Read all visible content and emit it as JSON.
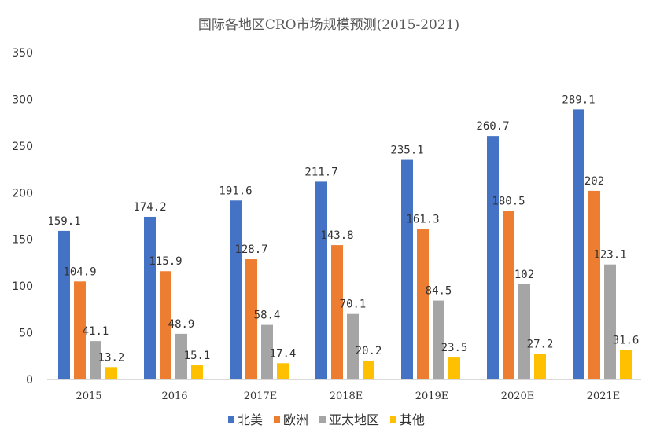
{
  "chart_data": {
    "type": "bar",
    "title": "国际各地区CRO市场规模预测(2015-2021)",
    "categories": [
      "2015",
      "2016",
      "2017E",
      "2018E",
      "2019E",
      "2020E",
      "2021E"
    ],
    "series": [
      {
        "name": "北美",
        "color": "#4472C4",
        "values": [
          159.1,
          174.2,
          191.6,
          211.7,
          235.1,
          260.7,
          289.1
        ]
      },
      {
        "name": "欧洲",
        "color": "#ED7D31",
        "values": [
          104.9,
          115.9,
          128.7,
          143.8,
          161.3,
          180.5,
          202
        ]
      },
      {
        "name": "亚太地区",
        "color": "#A5A5A5",
        "values": [
          41.1,
          48.9,
          58.4,
          70.1,
          84.5,
          102,
          123.1
        ]
      },
      {
        "name": "其他",
        "color": "#FFC000",
        "values": [
          13.2,
          15.1,
          17.4,
          20.2,
          23.5,
          27.2,
          31.6
        ]
      }
    ],
    "ylim": [
      0,
      350
    ],
    "yticks": [
      0,
      50,
      100,
      150,
      200,
      250,
      300,
      350
    ],
    "grid": false,
    "legend": "bottom",
    "xlabel": "",
    "ylabel": ""
  }
}
